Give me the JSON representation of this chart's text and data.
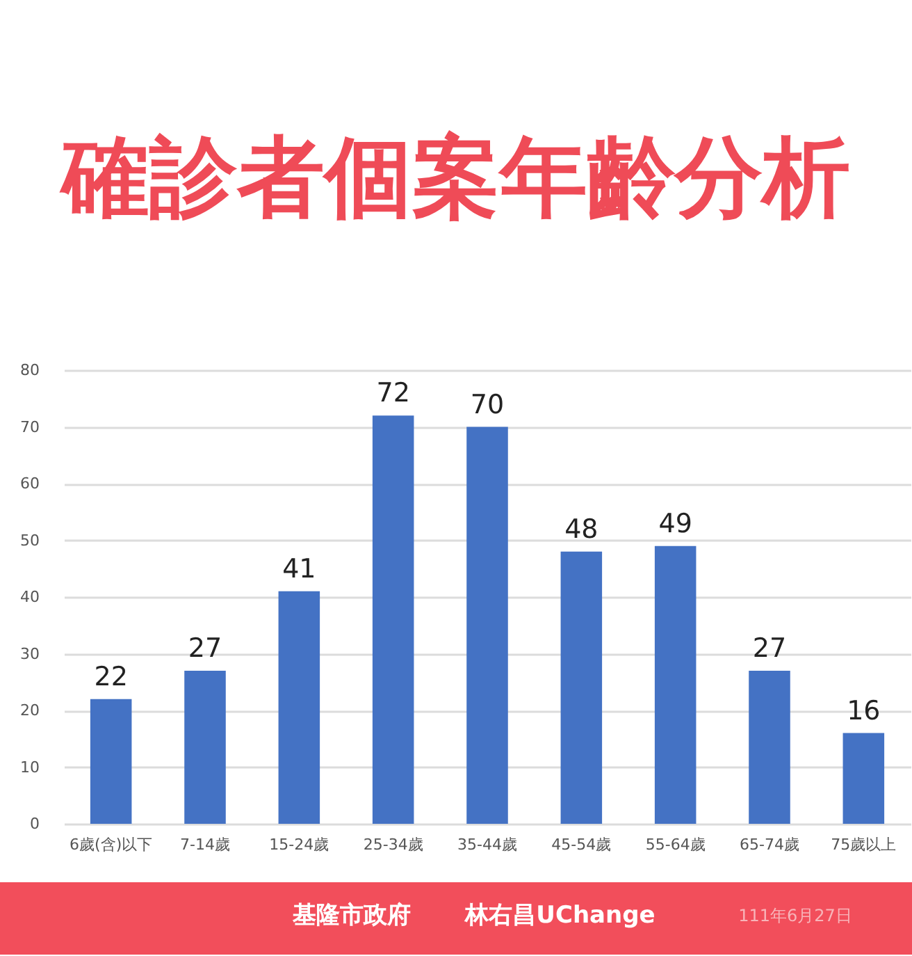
{
  "chart_data": {
    "type": "bar",
    "title": "確診者個案年齡分析",
    "categories": [
      "6歲(含)以下",
      "7-14歲",
      "15-24歲",
      "25-34歲",
      "35-44歲",
      "45-54歲",
      "55-64歲",
      "65-74歲",
      "75歲以上"
    ],
    "values": [
      22,
      27,
      41,
      72,
      70,
      48,
      49,
      27,
      16
    ],
    "color": "#4472c4",
    "ylim": [
      0,
      80
    ],
    "yticks": [
      0,
      10,
      20,
      30,
      40,
      50,
      60,
      70,
      80
    ],
    "grid": "y",
    "data_labels": true,
    "annotations": [
      "基隆市政府",
      "林右昌UChange",
      "111年6月27日"
    ]
  }
}
